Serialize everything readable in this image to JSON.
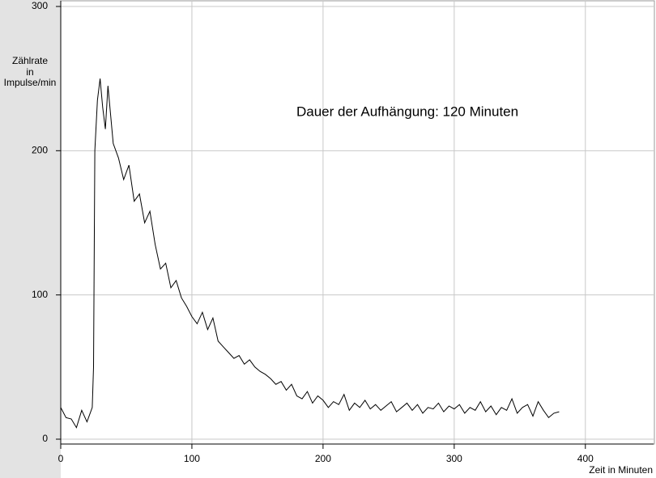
{
  "chart_data": {
    "type": "line",
    "annotation": "Dauer der Aufhängung: 120 Minuten",
    "ylabel": [
      "Zählrate",
      "in",
      "Impulse/min"
    ],
    "xlabel": "Zeit in Minuten",
    "x": [
      0,
      4,
      8,
      12,
      16,
      20,
      24,
      25,
      26,
      28,
      30,
      32,
      34,
      36,
      40,
      44,
      48,
      52,
      56,
      60,
      64,
      68,
      72,
      76,
      80,
      84,
      88,
      92,
      96,
      100,
      104,
      108,
      112,
      116,
      120,
      124,
      128,
      132,
      136,
      140,
      144,
      148,
      152,
      156,
      160,
      164,
      168,
      172,
      176,
      180,
      184,
      188,
      192,
      196,
      200,
      204,
      208,
      212,
      216,
      220,
      224,
      228,
      232,
      236,
      240,
      244,
      248,
      252,
      256,
      260,
      264,
      268,
      272,
      276,
      280,
      284,
      288,
      292,
      296,
      300,
      304,
      308,
      312,
      316,
      320,
      324,
      328,
      332,
      336,
      340,
      344,
      348,
      352,
      356,
      360,
      364,
      368,
      372,
      376,
      380
    ],
    "values": [
      22,
      15,
      14,
      8,
      20,
      12,
      22,
      50,
      200,
      235,
      250,
      230,
      215,
      245,
      205,
      195,
      180,
      190,
      165,
      170,
      150,
      158,
      135,
      118,
      122,
      105,
      110,
      98,
      92,
      85,
      80,
      88,
      76,
      84,
      68,
      64,
      60,
      56,
      58,
      52,
      55,
      50,
      47,
      45,
      42,
      38,
      40,
      34,
      38,
      30,
      28,
      33,
      25,
      30,
      27,
      22,
      26,
      24,
      31,
      20,
      25,
      22,
      27,
      21,
      24,
      20,
      23,
      26,
      19,
      22,
      25,
      20,
      24,
      18,
      22,
      21,
      25,
      19,
      23,
      21,
      24,
      18,
      22,
      20,
      26,
      19,
      23,
      17,
      22,
      20,
      28,
      18,
      22,
      24,
      16,
      26,
      20,
      15,
      18,
      19
    ],
    "color": "#000000",
    "xlim": [
      0,
      452
    ],
    "ylim": [
      0,
      300
    ],
    "xticks": [
      0,
      100,
      200,
      300,
      400
    ],
    "yticks": [
      0,
      100,
      200,
      300
    ],
    "grid": true
  }
}
